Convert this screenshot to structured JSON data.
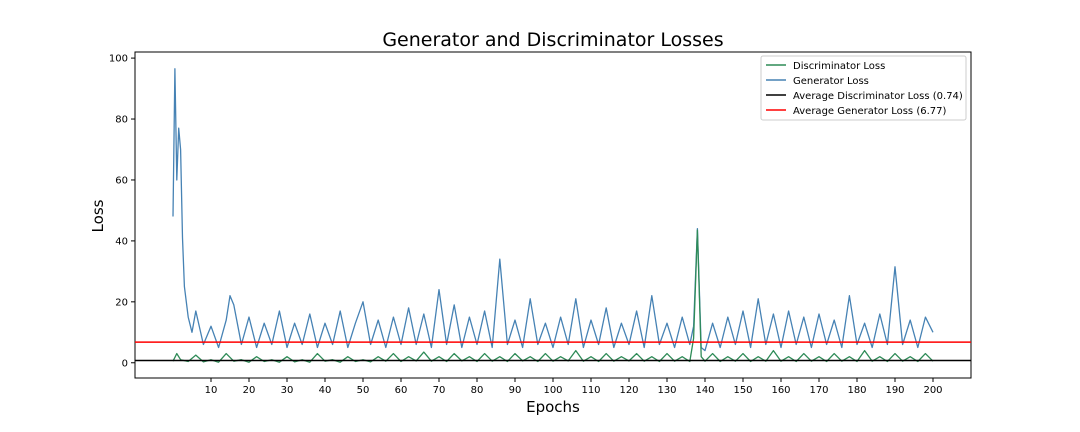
{
  "chart_data": {
    "type": "line",
    "title": "Generator and Discriminator Losses",
    "xlabel": "Epochs",
    "ylabel": "Loss",
    "xlim": [
      -10,
      210
    ],
    "ylim": [
      -5,
      102
    ],
    "x_ticks": [
      10,
      20,
      30,
      40,
      50,
      60,
      70,
      80,
      90,
      100,
      110,
      120,
      130,
      140,
      150,
      160,
      170,
      180,
      190,
      200
    ],
    "y_ticks": [
      0,
      20,
      40,
      60,
      80,
      100
    ],
    "grid": false,
    "legend_position": "top-right",
    "colors": {
      "discriminator": "#2e8b57",
      "generator": "#4682b4",
      "avg_discriminator": "#000000",
      "avg_generator": "#ff0000"
    },
    "series": [
      {
        "name": "Discriminator Loss",
        "x": [
          0,
          1,
          2,
          4,
          6,
          8,
          10,
          12,
          14,
          16,
          18,
          20,
          22,
          24,
          26,
          28,
          30,
          32,
          34,
          36,
          38,
          40,
          42,
          44,
          46,
          48,
          50,
          52,
          54,
          56,
          58,
          60,
          62,
          64,
          66,
          68,
          70,
          72,
          74,
          76,
          78,
          80,
          82,
          84,
          86,
          88,
          90,
          92,
          94,
          96,
          98,
          100,
          102,
          104,
          106,
          108,
          110,
          112,
          114,
          116,
          118,
          120,
          122,
          124,
          126,
          128,
          130,
          132,
          134,
          136,
          137,
          138,
          139,
          140,
          142,
          144,
          146,
          148,
          150,
          152,
          154,
          156,
          158,
          160,
          162,
          164,
          166,
          168,
          170,
          172,
          174,
          176,
          178,
          180,
          182,
          184,
          186,
          188,
          190,
          192,
          194,
          196,
          198,
          200
        ],
        "y": [
          0.5,
          3,
          1,
          0.4,
          2.5,
          0.3,
          1,
          0.2,
          3,
          0.5,
          1,
          0.2,
          2,
          0.4,
          1,
          0.2,
          2,
          0.3,
          1,
          0.2,
          3,
          0.5,
          1,
          0.2,
          2,
          0.4,
          1,
          0.3,
          2,
          0.5,
          3,
          0.4,
          2,
          0.6,
          3.5,
          0.5,
          2,
          0.4,
          3,
          0.6,
          2,
          0.4,
          3,
          0.5,
          2,
          0.4,
          3,
          0.6,
          2,
          0.4,
          3,
          0.5,
          2,
          0.6,
          4,
          0.5,
          2,
          0.4,
          3,
          0.5,
          2,
          0.6,
          3,
          0.5,
          2,
          0.4,
          3,
          0.5,
          2,
          0.4,
          8,
          43.5,
          2,
          0.5,
          3,
          0.4,
          2,
          0.5,
          3,
          0.4,
          2,
          0.5,
          4,
          0.5,
          2,
          0.4,
          3,
          0.5,
          2,
          0.4,
          3,
          0.5,
          2,
          0.4,
          4,
          0.5,
          2,
          0.4,
          3,
          0.5,
          2,
          0.4,
          3,
          0.5
        ]
      },
      {
        "name": "Generator Loss",
        "x": [
          0,
          0.5,
          1,
          1.5,
          2,
          2.5,
          3,
          4,
          5,
          6,
          8,
          10,
          12,
          14,
          15,
          16,
          18,
          20,
          22,
          24,
          26,
          28,
          30,
          32,
          34,
          36,
          38,
          40,
          42,
          44,
          46,
          48,
          50,
          52,
          54,
          56,
          58,
          60,
          62,
          64,
          66,
          68,
          70,
          72,
          74,
          76,
          78,
          80,
          82,
          84,
          86,
          88,
          90,
          92,
          94,
          96,
          98,
          100,
          102,
          104,
          106,
          108,
          110,
          112,
          114,
          116,
          118,
          120,
          122,
          124,
          126,
          128,
          130,
          132,
          134,
          136,
          137,
          138,
          139,
          140,
          142,
          144,
          146,
          148,
          150,
          152,
          154,
          156,
          158,
          160,
          162,
          164,
          166,
          168,
          170,
          172,
          174,
          176,
          178,
          180,
          182,
          184,
          186,
          188,
          190,
          192,
          194,
          196,
          198,
          200
        ],
        "y": [
          48,
          96.5,
          60,
          77,
          70,
          41,
          25,
          15,
          10,
          17,
          6,
          12,
          5,
          14,
          22,
          19,
          6,
          15,
          5,
          13,
          6,
          17,
          5,
          13,
          6,
          16,
          5,
          13,
          6,
          17,
          5,
          13,
          20,
          6,
          14,
          5,
          15,
          6,
          18,
          6,
          16,
          5,
          24,
          6,
          19,
          5,
          15,
          6,
          17,
          5,
          34,
          6,
          14,
          5,
          21,
          6,
          13,
          5,
          15,
          6,
          21,
          5,
          14,
          6,
          18,
          5,
          13,
          6,
          17,
          5,
          22,
          6,
          13,
          5,
          15,
          6,
          12,
          44,
          5,
          4,
          13,
          5,
          15,
          6,
          17,
          5,
          21,
          6,
          16,
          5,
          17,
          6,
          15,
          5,
          16,
          6,
          14,
          5,
          22,
          6,
          13,
          5,
          16,
          6,
          31.5,
          6,
          14,
          5,
          15,
          10
        ]
      }
    ],
    "hlines": [
      {
        "name": "Average Discriminator Loss (0.74)",
        "y": 0.74
      },
      {
        "name": "Average Generator Loss (6.77)",
        "y": 6.77
      }
    ]
  }
}
